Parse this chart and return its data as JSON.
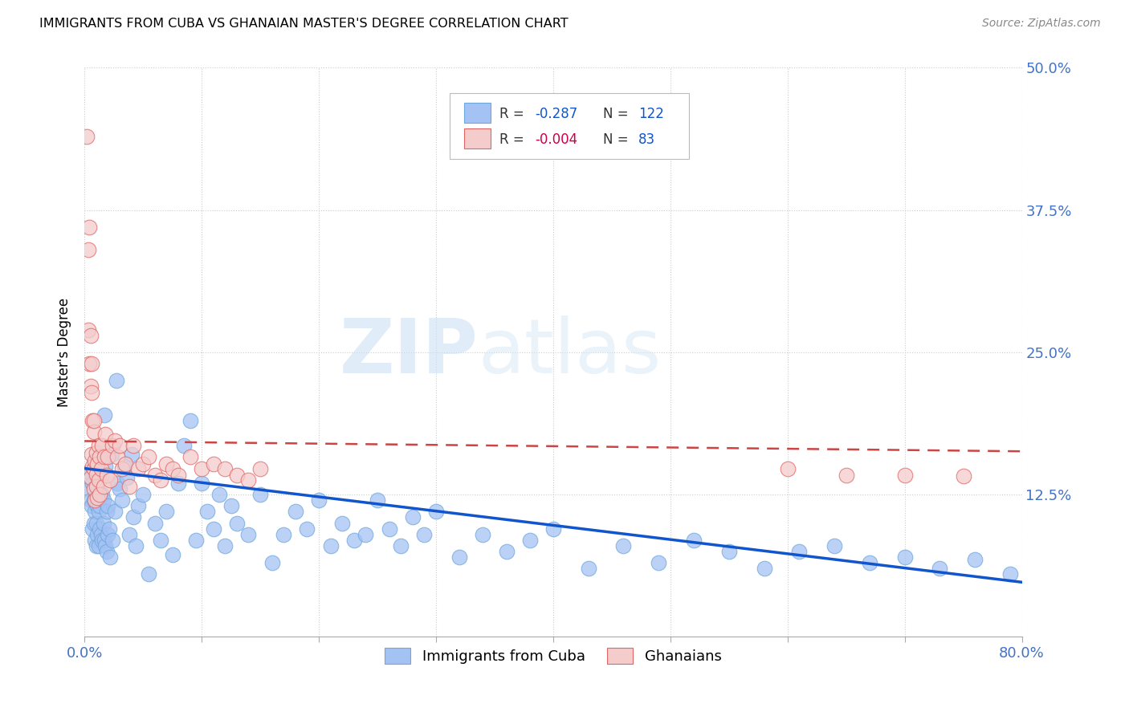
{
  "title": "IMMIGRANTS FROM CUBA VS GHANAIAN MASTER'S DEGREE CORRELATION CHART",
  "source": "Source: ZipAtlas.com",
  "ylabel": "Master's Degree",
  "yticks": [
    0.0,
    0.125,
    0.25,
    0.375,
    0.5
  ],
  "ytick_labels": [
    "",
    "12.5%",
    "25.0%",
    "37.5%",
    "50.0%"
  ],
  "watermark_zip": "ZIP",
  "watermark_atlas": "atlas",
  "blue_color": "#a4c2f4",
  "blue_edge": "#6fa8dc",
  "pink_color": "#f4cccc",
  "pink_edge": "#e06666",
  "blue_line_color": "#1155cc",
  "pink_line_color": "#cc4444",
  "legend_label1": "Immigrants from Cuba",
  "legend_label2": "Ghanaians",
  "xlim": [
    0.0,
    0.8
  ],
  "ylim": [
    0.0,
    0.5
  ],
  "blue_scatter_x": [
    0.003,
    0.004,
    0.005,
    0.006,
    0.007,
    0.007,
    0.008,
    0.008,
    0.009,
    0.009,
    0.01,
    0.01,
    0.01,
    0.011,
    0.011,
    0.012,
    0.012,
    0.013,
    0.013,
    0.014,
    0.014,
    0.015,
    0.015,
    0.016,
    0.016,
    0.017,
    0.017,
    0.018,
    0.018,
    0.019,
    0.019,
    0.02,
    0.02,
    0.021,
    0.022,
    0.023,
    0.024,
    0.026,
    0.027,
    0.028,
    0.03,
    0.032,
    0.034,
    0.036,
    0.038,
    0.04,
    0.042,
    0.044,
    0.046,
    0.05,
    0.055,
    0.06,
    0.065,
    0.07,
    0.075,
    0.08,
    0.085,
    0.09,
    0.095,
    0.1,
    0.105,
    0.11,
    0.115,
    0.12,
    0.125,
    0.13,
    0.14,
    0.15,
    0.16,
    0.17,
    0.18,
    0.19,
    0.2,
    0.21,
    0.22,
    0.23,
    0.24,
    0.25,
    0.26,
    0.27,
    0.28,
    0.29,
    0.3,
    0.32,
    0.34,
    0.36,
    0.38,
    0.4,
    0.43,
    0.46,
    0.49,
    0.52,
    0.55,
    0.58,
    0.61,
    0.64,
    0.67,
    0.7,
    0.73,
    0.76,
    0.79
  ],
  "blue_scatter_y": [
    0.145,
    0.13,
    0.12,
    0.115,
    0.135,
    0.095,
    0.12,
    0.1,
    0.11,
    0.085,
    0.125,
    0.1,
    0.08,
    0.115,
    0.09,
    0.11,
    0.08,
    0.095,
    0.115,
    0.09,
    0.14,
    0.085,
    0.125,
    0.1,
    0.12,
    0.195,
    0.085,
    0.15,
    0.08,
    0.11,
    0.075,
    0.09,
    0.115,
    0.095,
    0.07,
    0.16,
    0.085,
    0.11,
    0.225,
    0.135,
    0.13,
    0.12,
    0.15,
    0.14,
    0.09,
    0.16,
    0.105,
    0.08,
    0.115,
    0.125,
    0.055,
    0.1,
    0.085,
    0.11,
    0.072,
    0.135,
    0.168,
    0.19,
    0.085,
    0.135,
    0.11,
    0.095,
    0.125,
    0.08,
    0.115,
    0.1,
    0.09,
    0.125,
    0.065,
    0.09,
    0.11,
    0.095,
    0.12,
    0.08,
    0.1,
    0.085,
    0.09,
    0.12,
    0.095,
    0.08,
    0.105,
    0.09,
    0.11,
    0.07,
    0.09,
    0.075,
    0.085,
    0.095,
    0.06,
    0.08,
    0.065,
    0.085,
    0.075,
    0.06,
    0.075,
    0.08,
    0.065,
    0.07,
    0.06,
    0.068,
    0.055
  ],
  "pink_scatter_x": [
    0.002,
    0.003,
    0.003,
    0.004,
    0.004,
    0.005,
    0.005,
    0.005,
    0.006,
    0.006,
    0.006,
    0.007,
    0.007,
    0.008,
    0.008,
    0.008,
    0.008,
    0.009,
    0.009,
    0.01,
    0.01,
    0.01,
    0.011,
    0.011,
    0.012,
    0.012,
    0.013,
    0.013,
    0.014,
    0.015,
    0.016,
    0.017,
    0.018,
    0.019,
    0.02,
    0.022,
    0.024,
    0.026,
    0.028,
    0.03,
    0.032,
    0.035,
    0.038,
    0.042,
    0.046,
    0.05,
    0.055,
    0.06,
    0.065,
    0.07,
    0.075,
    0.08,
    0.09,
    0.1,
    0.11,
    0.12,
    0.13,
    0.14,
    0.15,
    0.6,
    0.65,
    0.7,
    0.75
  ],
  "pink_scatter_y": [
    0.44,
    0.34,
    0.27,
    0.36,
    0.24,
    0.22,
    0.265,
    0.14,
    0.24,
    0.215,
    0.16,
    0.19,
    0.15,
    0.18,
    0.148,
    0.13,
    0.19,
    0.155,
    0.12,
    0.162,
    0.143,
    0.132,
    0.152,
    0.122,
    0.168,
    0.138,
    0.158,
    0.125,
    0.148,
    0.168,
    0.132,
    0.158,
    0.178,
    0.142,
    0.158,
    0.138,
    0.168,
    0.172,
    0.158,
    0.168,
    0.148,
    0.152,
    0.132,
    0.168,
    0.148,
    0.152,
    0.158,
    0.142,
    0.138,
    0.152,
    0.148,
    0.142,
    0.158,
    0.148,
    0.152,
    0.148,
    0.142,
    0.138,
    0.148,
    0.148,
    0.142,
    0.142,
    0.141
  ],
  "blue_trend_y_start": 0.148,
  "blue_trend_y_end": 0.048,
  "pink_trend_y_start": 0.172,
  "pink_trend_y_end": 0.163
}
